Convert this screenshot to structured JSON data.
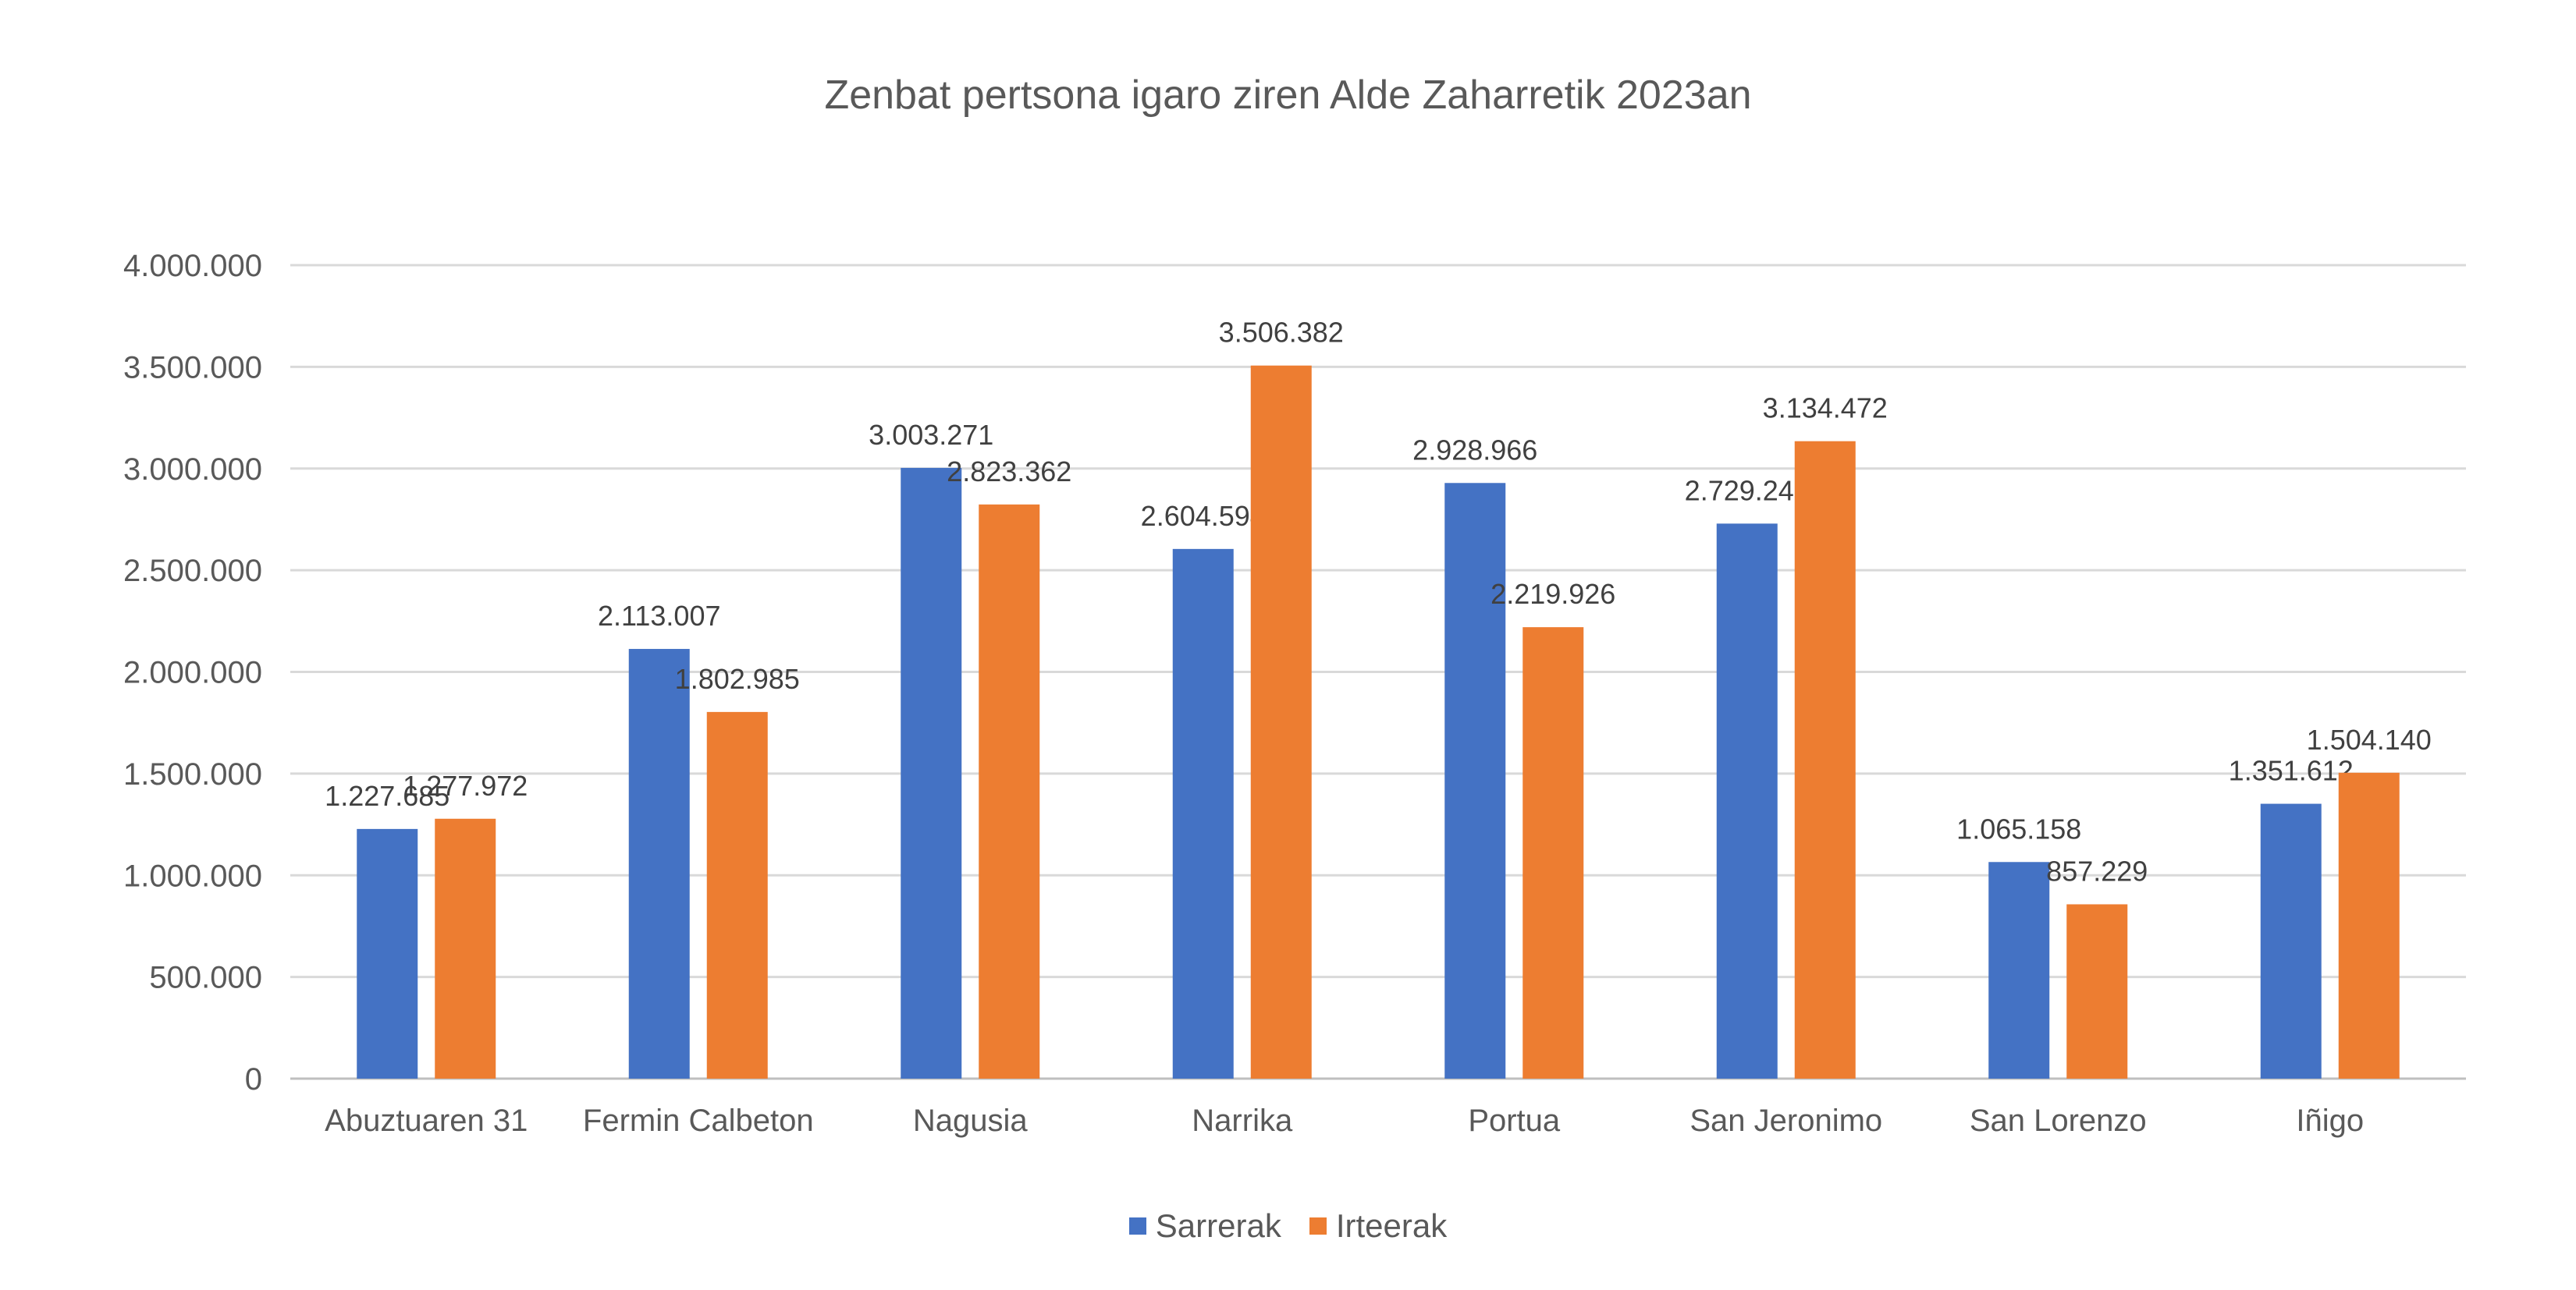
{
  "chart_data": {
    "type": "bar",
    "title": "Zenbat pertsona igaro ziren Alde Zaharretik 2023an",
    "categories": [
      "Abuztuaren 31",
      "Fermin Calbeton",
      "Nagusia",
      "Narrika",
      "Portua",
      "San Jeronimo",
      "San Lorenzo",
      "Iñigo"
    ],
    "series": [
      {
        "name": "Sarrerak",
        "color": "#4472C4",
        "values": [
          1227685,
          2113007,
          3003271,
          2604594,
          2928966,
          2729249,
          1065158,
          1351612
        ],
        "labels": [
          "1.227.685",
          "2.113.007",
          "3.003.271",
          "2.604.594",
          "2.928.966",
          "2.729.249",
          "1.065.158",
          "1.351.612"
        ]
      },
      {
        "name": "Irteerak",
        "color": "#ED7D31",
        "values": [
          1277972,
          1802985,
          2823362,
          3506382,
          2219926,
          3134472,
          857229,
          1504140
        ],
        "labels": [
          "1.277.972",
          "1.802.985",
          "2.823.362",
          "3.506.382",
          "2.219.926",
          "3.134.472",
          "857.229",
          "1.504.140"
        ]
      }
    ],
    "ylim": [
      0,
      4000000
    ],
    "yticks": [
      0,
      500000,
      1000000,
      1500000,
      2000000,
      2500000,
      3000000,
      3500000,
      4000000
    ],
    "ytick_labels": [
      "0",
      "500.000",
      "1.000.000",
      "1.500.000",
      "2.000.000",
      "2.500.000",
      "3.000.000",
      "3.500.000",
      "4.000.000"
    ],
    "grid": true,
    "legend_position": "bottom"
  }
}
